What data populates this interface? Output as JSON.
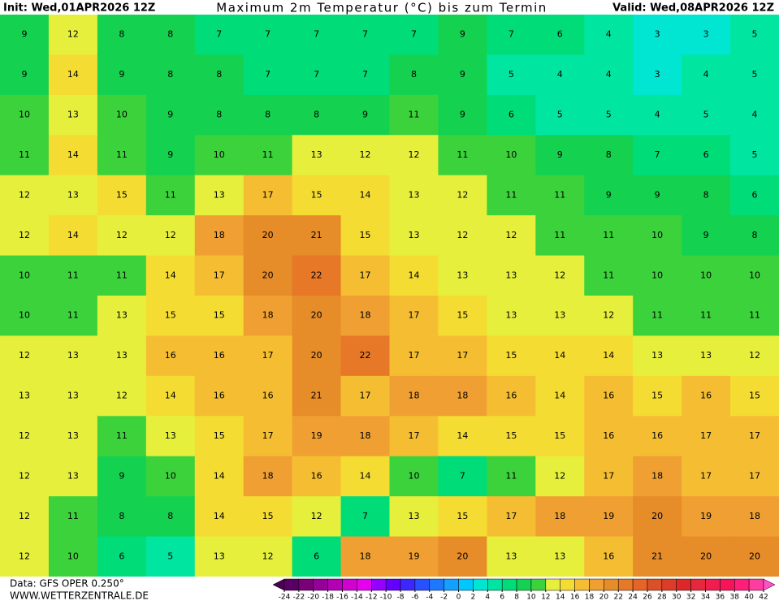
{
  "header": {
    "init": "Init: Wed,01APR2026 12Z",
    "title": "Maximum 2m Temperatur (°C) bis zum Termin",
    "valid": "Valid: Wed,08APR2026 12Z"
  },
  "footer": {
    "data": "Data: GFS OPER 0.250°",
    "site": "WWW.WETTERZENTRALE.DE"
  },
  "grid": {
    "values": [
      [
        9,
        12,
        8,
        8,
        7,
        7,
        7,
        7,
        7,
        9,
        7,
        6,
        4,
        3,
        3,
        5
      ],
      [
        9,
        14,
        9,
        8,
        8,
        7,
        7,
        7,
        8,
        9,
        5,
        4,
        4,
        3,
        4,
        5
      ],
      [
        10,
        13,
        10,
        9,
        8,
        8,
        8,
        9,
        11,
        9,
        6,
        5,
        5,
        4,
        5,
        4
      ],
      [
        11,
        14,
        11,
        9,
        10,
        11,
        13,
        12,
        12,
        11,
        10,
        9,
        8,
        7,
        6,
        5
      ],
      [
        12,
        13,
        15,
        11,
        13,
        17,
        15,
        14,
        13,
        12,
        11,
        11,
        9,
        9,
        8,
        6
      ],
      [
        12,
        14,
        12,
        12,
        18,
        20,
        21,
        15,
        13,
        12,
        12,
        11,
        11,
        10,
        9,
        8
      ],
      [
        10,
        11,
        11,
        14,
        17,
        20,
        22,
        17,
        14,
        13,
        13,
        12,
        11,
        10,
        10,
        10
      ],
      [
        10,
        11,
        13,
        15,
        15,
        18,
        20,
        18,
        17,
        15,
        13,
        13,
        12,
        11,
        11,
        11
      ],
      [
        12,
        13,
        13,
        16,
        16,
        17,
        20,
        22,
        17,
        17,
        15,
        14,
        14,
        13,
        13,
        12
      ],
      [
        13,
        13,
        12,
        14,
        16,
        16,
        21,
        17,
        18,
        18,
        16,
        14,
        16,
        15,
        16,
        15
      ],
      [
        12,
        13,
        11,
        13,
        15,
        17,
        19,
        18,
        17,
        14,
        15,
        15,
        16,
        16,
        17,
        17
      ],
      [
        12,
        13,
        9,
        10,
        14,
        18,
        16,
        14,
        10,
        7,
        11,
        12,
        17,
        18,
        17,
        17
      ],
      [
        12,
        11,
        8,
        8,
        14,
        15,
        12,
        7,
        13,
        15,
        17,
        18,
        19,
        20,
        19,
        18
      ],
      [
        12,
        10,
        6,
        5,
        13,
        12,
        6,
        18,
        19,
        20,
        13,
        13,
        16,
        21,
        20,
        20
      ]
    ]
  },
  "colorbar": {
    "ticks": [
      -24,
      -22,
      -20,
      -18,
      -16,
      -14,
      -12,
      -10,
      -8,
      -6,
      -4,
      -2,
      0,
      2,
      4,
      6,
      8,
      10,
      12,
      14,
      16,
      18,
      20,
      22,
      24,
      26,
      28,
      30,
      32,
      34,
      36,
      38,
      40,
      42
    ],
    "colors": [
      "#4b0050",
      "#5a0064",
      "#7a007a",
      "#96009a",
      "#b400b4",
      "#d200d2",
      "#e600f0",
      "#9600ff",
      "#6400ff",
      "#3c28ff",
      "#2850ff",
      "#1e78ff",
      "#14a0ff",
      "#00c8ff",
      "#00e6d2",
      "#00e6a0",
      "#00dc78",
      "#14d250",
      "#3cd23c",
      "#e6f03c",
      "#f5dc32",
      "#f5be32",
      "#f0a032",
      "#e68c28",
      "#e67828",
      "#e66428",
      "#dc5028",
      "#dc3c28",
      "#dc2828",
      "#e6283c",
      "#f01e50",
      "#f5145a",
      "#ff1e78",
      "#ff3ca0",
      "#ff50c8"
    ]
  }
}
